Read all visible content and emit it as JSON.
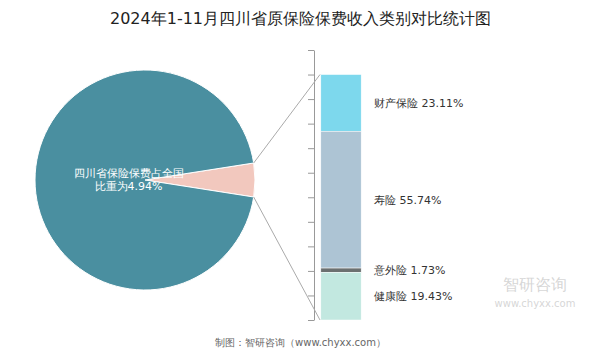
{
  "chart_data": [
    {
      "type": "pie",
      "title": "2024年1-11月四川省原保险保费收入类别对比统计图",
      "values": [
        4.94,
        95.06
      ],
      "colors": [
        "#f2c8be",
        "#4a8fa0"
      ],
      "annotations": [
        "四川省保险保费占全国\n比重为4.94%",
        "智研咨询",
        "www.chyxx.com",
        "制图：智研咨询（www.chyxx.com）"
      ]
    },
    {
      "type": "bar",
      "stacked": true,
      "categories": [
        null
      ],
      "series": [
        {
          "name": "财产保险",
          "color": "#7dd8ed",
          "values": [
            23.11
          ],
          "value_labels": [
            "财产保险 23.11%"
          ]
        },
        {
          "name": "寿险",
          "color": "#adc4d4",
          "values": [
            55.74
          ],
          "value_labels": [
            "寿险 55.74%"
          ]
        },
        {
          "name": "意外险",
          "color": "#6b7070",
          "values": [
            1.73
          ],
          "value_labels": [
            "意外险 1.73%"
          ]
        },
        {
          "name": "健康险",
          "color": "#c2e8e0",
          "values": [
            19.43
          ],
          "value_labels": [
            "健康险 19.43%"
          ]
        }
      ],
      "ylim": [
        0,
        110
      ],
      "yticks": [
        0,
        10,
        20,
        30,
        40,
        50,
        60,
        70,
        80,
        90,
        100,
        110
      ],
      "data_labels": true,
      "tick_labels": false
    }
  ]
}
